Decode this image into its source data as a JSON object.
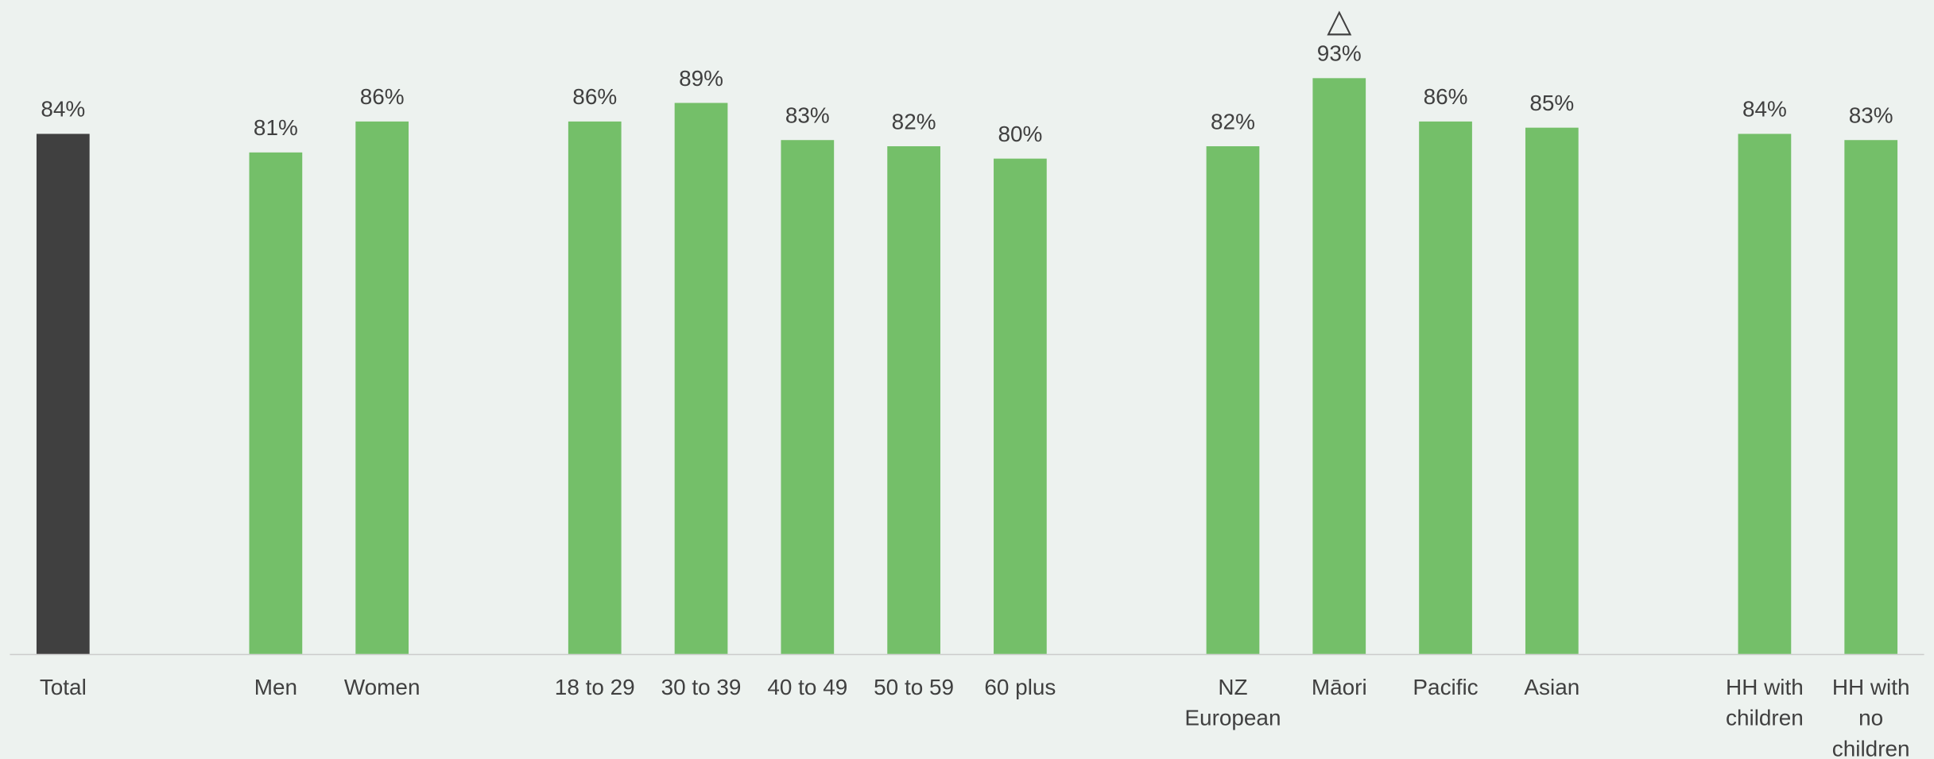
{
  "chart_data": {
    "type": "bar",
    "categories": [
      "Total",
      null,
      "Men",
      "Women",
      null,
      "18 to 29",
      "30 to 39",
      "40 to 49",
      "50 to 59",
      "60 plus",
      null,
      "NZ European",
      "Māori",
      "Pacific",
      "Asian",
      null,
      "HH with children",
      "HH with no children"
    ],
    "values": [
      84,
      null,
      81,
      86,
      null,
      86,
      89,
      83,
      82,
      80,
      null,
      82,
      93,
      86,
      85,
      null,
      84,
      83
    ],
    "value_labels": [
      "84%",
      null,
      "81%",
      "86%",
      null,
      "86%",
      "89%",
      "83%",
      "82%",
      "80%",
      null,
      "82%",
      "93%",
      "86%",
      "85%",
      null,
      "84%",
      "83%"
    ],
    "colors": [
      "#404040",
      null,
      "#74bf69",
      "#74bf69",
      null,
      "#74bf69",
      "#74bf69",
      "#74bf69",
      "#74bf69",
      "#74bf69",
      null,
      "#74bf69",
      "#74bf69",
      "#74bf69",
      "#74bf69",
      null,
      "#74bf69",
      "#74bf69"
    ],
    "ylim": [
      0,
      100
    ],
    "annotations": [
      {
        "label": "△",
        "category": "Māori"
      }
    ]
  }
}
